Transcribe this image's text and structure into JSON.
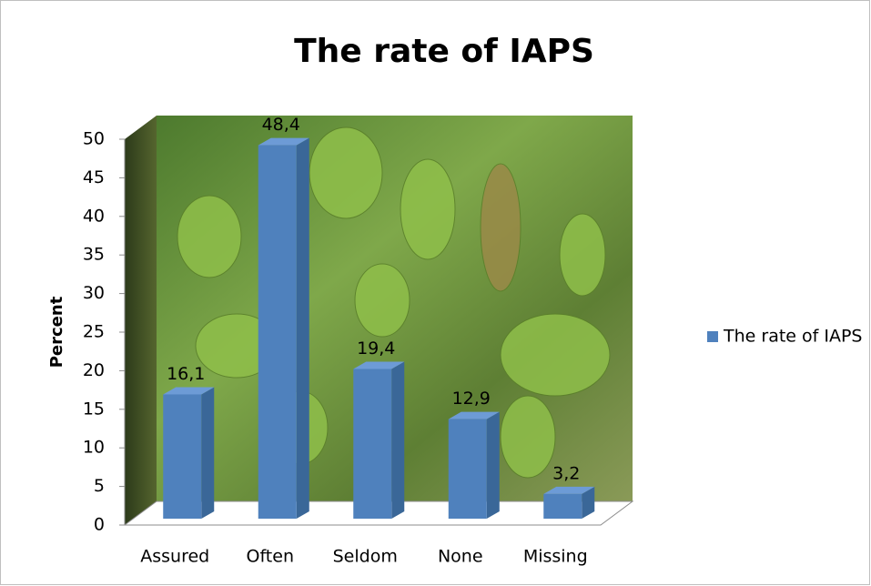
{
  "chart_data": {
    "type": "bar",
    "title": "The rate of IAPS",
    "y_label": "Percent",
    "categories": [
      "Assured",
      "Often",
      "Seldom",
      "None",
      "Missing"
    ],
    "series": [
      {
        "name": "The rate of IAPS",
        "color": "#4f81bd",
        "values": [
          16.1,
          48.4,
          19.4,
          12.9,
          3.2
        ],
        "value_labels": [
          "16,1",
          "48,4",
          "19,4",
          "12,9",
          "3,2"
        ]
      }
    ],
    "ylim": [
      0,
      50
    ],
    "yticks": [
      0,
      5,
      10,
      15,
      20,
      25,
      30,
      35,
      40,
      45,
      50
    ],
    "legend": "right"
  }
}
